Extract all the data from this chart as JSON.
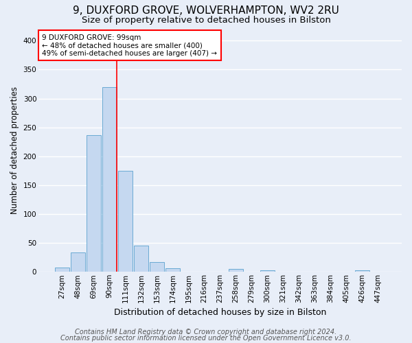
{
  "title1": "9, DUXFORD GROVE, WOLVERHAMPTON, WV2 2RU",
  "title2": "Size of property relative to detached houses in Bilston",
  "xlabel": "Distribution of detached houses by size in Bilston",
  "ylabel": "Number of detached properties",
  "categories": [
    "27sqm",
    "48sqm",
    "69sqm",
    "90sqm",
    "111sqm",
    "132sqm",
    "153sqm",
    "174sqm",
    "195sqm",
    "216sqm",
    "237sqm",
    "258sqm",
    "279sqm",
    "300sqm",
    "321sqm",
    "342sqm",
    "363sqm",
    "384sqm",
    "405sqm",
    "426sqm",
    "447sqm"
  ],
  "values": [
    8,
    34,
    237,
    320,
    175,
    46,
    17,
    6,
    0,
    0,
    0,
    5,
    0,
    3,
    0,
    0,
    0,
    0,
    0,
    3,
    0
  ],
  "bar_color": "#c5d8f0",
  "bar_edgecolor": "#6aaad4",
  "annotation_text_line1": "9 DUXFORD GROVE: 99sqm",
  "annotation_text_line2": "← 48% of detached houses are smaller (400)",
  "annotation_text_line3": "49% of semi-detached houses are larger (407) →",
  "annotation_box_color": "white",
  "annotation_box_edgecolor": "red",
  "vline_color": "red",
  "ylim": [
    0,
    420
  ],
  "yticks": [
    0,
    50,
    100,
    150,
    200,
    250,
    300,
    350,
    400
  ],
  "bg_color": "#e8eef8",
  "grid_color": "white",
  "footer1": "Contains HM Land Registry data © Crown copyright and database right 2024.",
  "footer2": "Contains public sector information licensed under the Open Government Licence v3.0.",
  "title1_fontsize": 11,
  "title2_fontsize": 9.5,
  "xlabel_fontsize": 9,
  "ylabel_fontsize": 8.5,
  "tick_fontsize": 7.5,
  "footer_fontsize": 7,
  "annot_fontsize": 7.5
}
